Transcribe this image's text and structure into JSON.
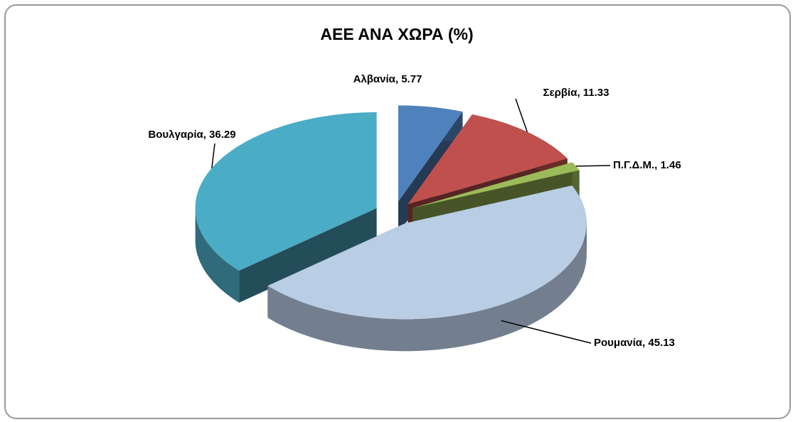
{
  "chart_data": {
    "type": "pie3d",
    "title": "ΑΕΕ ΑΝΑ ΧΩΡΑ (%)",
    "categories": [
      "Αλβανία",
      "Σερβία",
      "Π.Γ.Δ.Μ.",
      "Ρουμανία",
      "Βουλγαρία"
    ],
    "values": [
      5.77,
      11.33,
      1.46,
      45.13,
      36.29
    ],
    "value_labels": [
      "Αλβανία, 5.77",
      "Σερβία, 11.33",
      "Π.Γ.Δ.Μ., 1.46",
      "Ρουμανία, 45.13",
      "Βουλγαρία, 36.29"
    ],
    "colors": [
      "#4f81bd",
      "#c0504d",
      "#9bbb59",
      "#b9cde5",
      "#4bacc6"
    ]
  }
}
